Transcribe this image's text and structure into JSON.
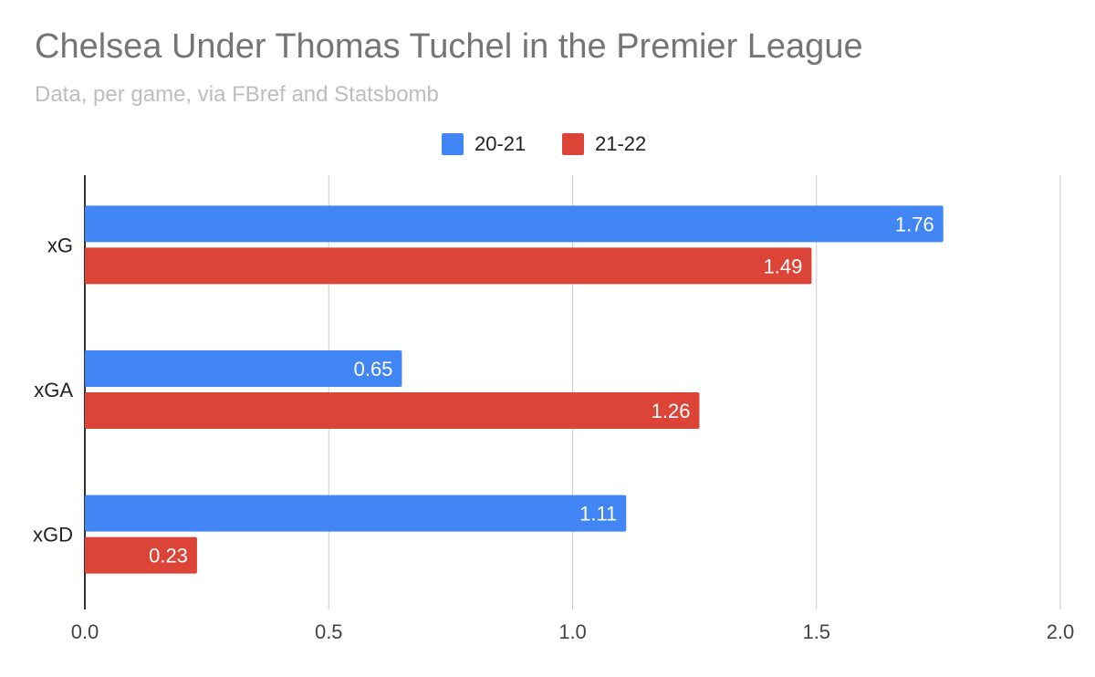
{
  "chart_data": {
    "type": "bar",
    "orientation": "horizontal",
    "title": "Chelsea Under Thomas Tuchel in the Premier League",
    "subtitle": "Data, per game, via FBref and Statsbomb",
    "categories": [
      "xG",
      "xGA",
      "xGD"
    ],
    "series": [
      {
        "name": "20-21",
        "color": "#4285f4",
        "values": [
          1.76,
          0.65,
          1.11
        ]
      },
      {
        "name": "21-22",
        "color": "#db4437",
        "values": [
          1.49,
          1.26,
          0.23
        ]
      }
    ],
    "xlim": [
      0,
      2.0
    ],
    "x_ticks": [
      "0.0",
      "0.5",
      "1.0",
      "1.5",
      "2.0"
    ],
    "x_tick_values": [
      0,
      0.5,
      1.0,
      1.5,
      2.0
    ],
    "grid": true,
    "legend_position": "top",
    "data_labels": true
  }
}
